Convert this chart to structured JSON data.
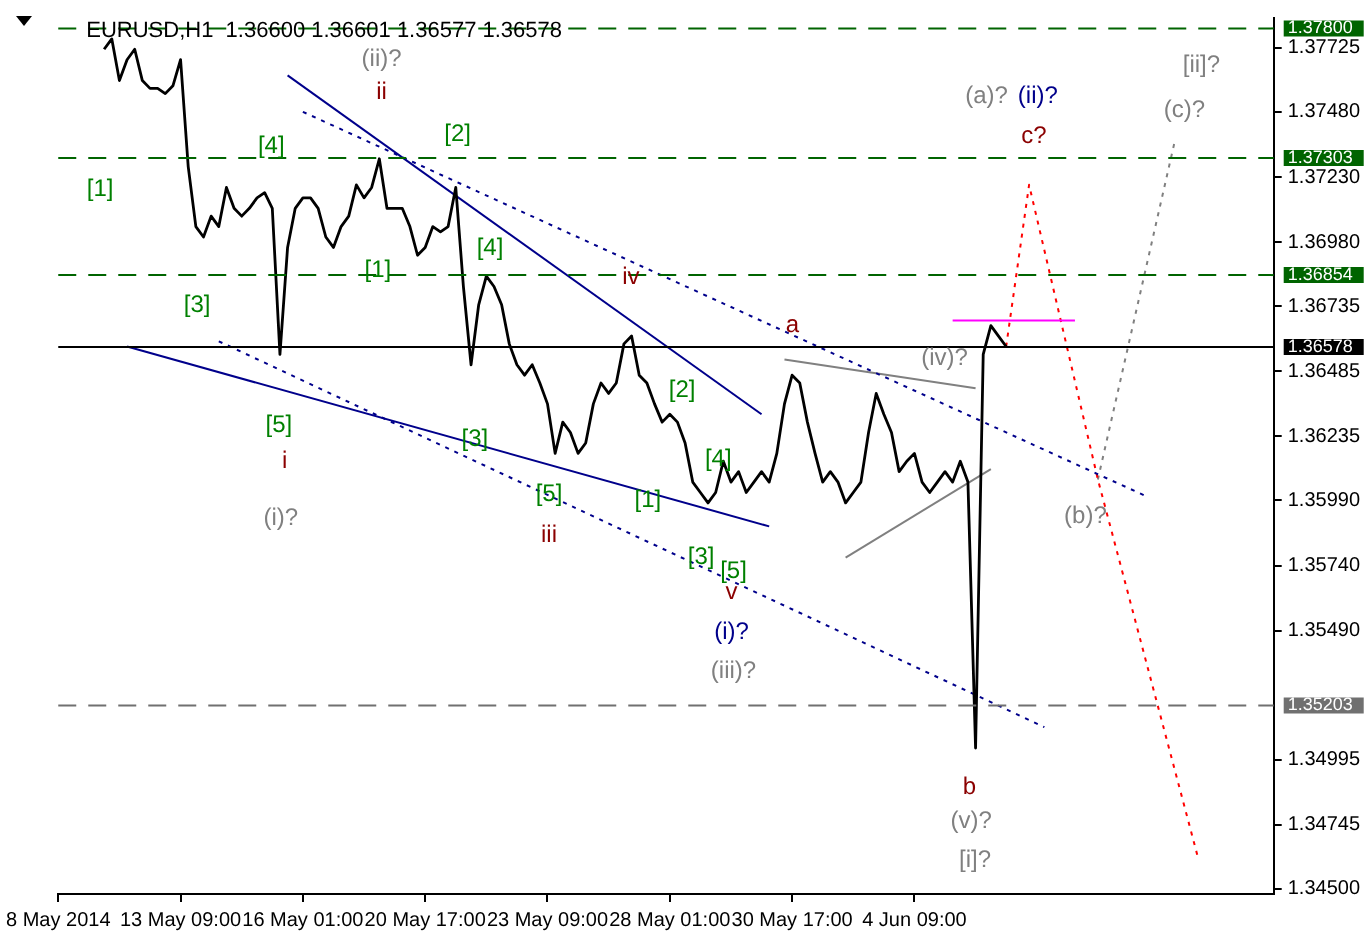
{
  "chart_data": {
    "type": "line",
    "title": "EURUSD,H1  1.36600 1.36601 1.36577 1.36578",
    "categories": [
      "8 May 2014",
      null,
      null,
      null,
      null,
      null,
      null,
      null,
      null,
      null,
      null,
      null,
      null,
      null,
      null,
      null,
      "13 May 09:00",
      null,
      null,
      null,
      null,
      null,
      null,
      null,
      null,
      null,
      null,
      null,
      null,
      null,
      null,
      null,
      "16 May 01:00",
      null,
      null,
      null,
      null,
      null,
      null,
      null,
      null,
      null,
      null,
      null,
      null,
      null,
      null,
      null,
      "20 May 17:00",
      null,
      null,
      null,
      null,
      null,
      null,
      null,
      null,
      null,
      null,
      null,
      null,
      null,
      null,
      null,
      "23 May 09:00",
      null,
      null,
      null,
      null,
      null,
      null,
      null,
      null,
      null,
      null,
      null,
      null,
      null,
      null,
      null,
      "28 May 01:00",
      null,
      null,
      null,
      null,
      null,
      null,
      null,
      null,
      null,
      null,
      null,
      null,
      null,
      null,
      null,
      "30 May 17:00",
      null,
      null,
      null,
      null,
      null,
      null,
      null,
      null,
      null,
      null,
      null,
      null,
      null,
      null,
      null,
      "4 Jun 09:00",
      null,
      null,
      null,
      null,
      null,
      null,
      null,
      null,
      null,
      null,
      null,
      null,
      null,
      null,
      null,
      null,
      null,
      null,
      null,
      null,
      null,
      null,
      null,
      null,
      null,
      null,
      null,
      null,
      null,
      null,
      null,
      null,
      null,
      null,
      null,
      null,
      null,
      null,
      null,
      null,
      null,
      null,
      null,
      null,
      null,
      null,
      null
    ],
    "series": [
      {
        "color": "#000000",
        "values": [
          null,
          null,
          null,
          null,
          null,
          null,
          1.3772,
          1.3776,
          1.376,
          1.3768,
          1.3772,
          1.376,
          1.3757,
          1.3757,
          1.3755,
          1.3758,
          1.3768,
          1.3727,
          1.3704,
          1.37,
          1.3708,
          1.3704,
          1.3719,
          1.3711,
          1.3708,
          1.3711,
          1.3715,
          1.3717,
          1.3711,
          1.3655,
          1.3696,
          1.3711,
          1.3715,
          1.3715,
          1.3711,
          1.37,
          1.3696,
          1.3704,
          1.3708,
          1.372,
          1.3715,
          1.3719,
          1.373,
          1.3711,
          1.3711,
          1.3711,
          1.3704,
          1.3693,
          1.3696,
          1.3704,
          1.3702,
          1.3704,
          1.3719,
          1.3681,
          1.3651,
          1.3674,
          1.3685,
          1.3681,
          1.3674,
          1.3659,
          1.3651,
          1.3647,
          1.3651,
          1.3644,
          1.3636,
          1.3617,
          1.3629,
          1.3625,
          1.3617,
          1.3621,
          1.3636,
          1.3644,
          1.364,
          1.3644,
          1.3659,
          1.3662,
          1.3647,
          1.3644,
          1.3636,
          1.3629,
          1.3632,
          1.3629,
          1.3621,
          1.3606,
          1.3602,
          1.3598,
          1.3602,
          1.3614,
          1.3606,
          1.361,
          1.3602,
          1.3606,
          1.361,
          1.3606,
          1.3617,
          1.3636,
          1.3647,
          1.3644,
          1.3629,
          1.3617,
          1.3606,
          1.361,
          1.3606,
          1.3598,
          1.3602,
          1.3606,
          1.3625,
          1.364,
          1.3632,
          1.3625,
          1.361,
          1.3614,
          1.3617,
          1.3606,
          1.3602,
          1.3606,
          1.361,
          1.3606,
          1.3614,
          1.3606,
          1.3504,
          1.3655,
          1.3666,
          1.3662,
          1.3658,
          null,
          null,
          null,
          null,
          null,
          null,
          null,
          null,
          null,
          null,
          null,
          null,
          null,
          null,
          null,
          null,
          null,
          null,
          null,
          null,
          null,
          null,
          null,
          null,
          null,
          null,
          null,
          null,
          null,
          null,
          null,
          null,
          null,
          null,
          null
        ]
      },
      {
        "color": "#00008b",
        "line_style": "solid",
        "values": [
          null,
          null,
          null,
          null,
          null,
          null,
          null,
          null,
          null,
          null,
          null,
          null,
          null,
          null,
          null,
          null,
          null,
          null,
          null,
          null,
          null,
          null,
          null,
          null,
          null,
          null,
          null,
          null,
          null,
          null,
          1.3762,
          null,
          null,
          null,
          null,
          null,
          null,
          null,
          null,
          null,
          null,
          null,
          null,
          null,
          null,
          null,
          null,
          null,
          null,
          null,
          null,
          null,
          null,
          null,
          null,
          null,
          null,
          null,
          null,
          null,
          null,
          null,
          null,
          null,
          null,
          null,
          null,
          null,
          null,
          null,
          null,
          null,
          null,
          null,
          null,
          null,
          null,
          null,
          null,
          null,
          null,
          null,
          null,
          null,
          null,
          null,
          null,
          null,
          null,
          null,
          null,
          null,
          1.3632,
          null,
          null,
          null,
          null,
          null,
          null,
          null,
          null,
          null,
          null,
          null,
          null,
          null,
          null,
          null,
          null,
          null,
          null,
          null,
          null,
          null,
          null,
          null,
          null,
          null,
          null,
          null,
          null,
          null,
          null,
          null,
          null,
          null,
          null,
          null,
          null,
          null,
          null,
          null,
          null,
          null,
          null,
          null,
          null,
          null,
          null,
          null,
          null,
          null,
          null,
          null,
          null,
          null,
          null,
          null,
          null,
          null,
          null,
          null,
          null,
          null,
          null,
          null,
          null,
          null,
          null,
          null
        ]
      },
      {
        "color": "#00008b",
        "line_style": "solid",
        "values": [
          null,
          null,
          null,
          null,
          null,
          null,
          null,
          null,
          null,
          1.3658,
          null,
          null,
          null,
          null,
          null,
          null,
          null,
          null,
          null,
          null,
          null,
          null,
          null,
          null,
          null,
          null,
          null,
          null,
          null,
          null,
          null,
          null,
          null,
          null,
          null,
          null,
          null,
          null,
          null,
          null,
          null,
          null,
          null,
          null,
          null,
          null,
          null,
          null,
          null,
          null,
          null,
          null,
          null,
          null,
          null,
          null,
          null,
          null,
          null,
          null,
          null,
          null,
          null,
          null,
          null,
          null,
          null,
          null,
          null,
          null,
          null,
          null,
          null,
          null,
          null,
          null,
          null,
          null,
          null,
          null,
          null,
          null,
          null,
          null,
          null,
          null,
          null,
          null,
          null,
          null,
          null,
          null,
          null,
          1.3589,
          null,
          null,
          null,
          null,
          null,
          null,
          null,
          null,
          null,
          null,
          null,
          null,
          null,
          null,
          null,
          null,
          null,
          null,
          null,
          null,
          null,
          null,
          null,
          null,
          null,
          null,
          null,
          null,
          null,
          null,
          null,
          null,
          null,
          null,
          null,
          null,
          null,
          null,
          null,
          null,
          null,
          null,
          null,
          null,
          null,
          null,
          null,
          null,
          null,
          null,
          null,
          null,
          null,
          null,
          null,
          null,
          null,
          null,
          null,
          null,
          null,
          null,
          null,
          null,
          null,
          null
        ]
      },
      {
        "color": "#00008b",
        "line_style": "dotted",
        "values": [
          null,
          null,
          null,
          null,
          null,
          null,
          null,
          null,
          null,
          null,
          null,
          null,
          null,
          null,
          null,
          null,
          null,
          null,
          null,
          null,
          null,
          null,
          null,
          null,
          null,
          null,
          null,
          null,
          null,
          null,
          null,
          null,
          1.3748,
          null,
          null,
          null,
          null,
          null,
          null,
          null,
          null,
          null,
          null,
          null,
          null,
          null,
          null,
          null,
          null,
          null,
          null,
          null,
          null,
          null,
          null,
          null,
          null,
          null,
          null,
          null,
          null,
          null,
          null,
          null,
          null,
          null,
          null,
          null,
          null,
          null,
          null,
          null,
          null,
          null,
          null,
          null,
          null,
          null,
          null,
          null,
          null,
          null,
          null,
          null,
          null,
          null,
          null,
          null,
          null,
          null,
          null,
          null,
          null,
          null,
          null,
          null,
          null,
          null,
          null,
          null,
          null,
          null,
          null,
          null,
          null,
          null,
          null,
          null,
          null,
          null,
          null,
          null,
          null,
          null,
          null,
          null,
          null,
          null,
          null,
          null,
          null,
          null,
          null,
          null,
          null,
          null,
          null,
          null,
          null,
          null,
          null,
          null,
          null,
          null,
          null,
          null,
          null,
          null,
          null,
          null,
          null,
          null,
          1.3601,
          null,
          null,
          null,
          null,
          null,
          null,
          null,
          null,
          null,
          null,
          null,
          null,
          null,
          null,
          null,
          null,
          null
        ]
      },
      {
        "color": "#00008b",
        "line_style": "dotted",
        "values": [
          null,
          null,
          null,
          null,
          null,
          null,
          null,
          null,
          null,
          null,
          null,
          null,
          null,
          null,
          null,
          null,
          null,
          null,
          null,
          null,
          null,
          1.366,
          null,
          null,
          null,
          null,
          null,
          null,
          null,
          null,
          null,
          null,
          null,
          null,
          null,
          null,
          null,
          null,
          null,
          null,
          null,
          null,
          null,
          null,
          null,
          null,
          null,
          null,
          null,
          null,
          null,
          null,
          null,
          null,
          null,
          null,
          null,
          null,
          null,
          null,
          null,
          null,
          null,
          null,
          null,
          null,
          null,
          null,
          null,
          null,
          null,
          null,
          null,
          null,
          null,
          null,
          null,
          null,
          null,
          null,
          null,
          null,
          null,
          null,
          null,
          null,
          null,
          null,
          null,
          null,
          null,
          null,
          null,
          null,
          null,
          null,
          null,
          null,
          null,
          null,
          null,
          null,
          null,
          null,
          null,
          null,
          null,
          null,
          null,
          null,
          null,
          null,
          null,
          null,
          null,
          null,
          null,
          null,
          null,
          null,
          null,
          null,
          null,
          null,
          null,
          null,
          null,
          null,
          null,
          1.3512,
          null,
          null,
          null,
          null,
          null,
          null,
          null,
          null,
          null,
          null,
          null,
          null,
          null,
          null,
          null,
          null,
          null,
          null,
          null,
          null,
          null,
          null,
          null,
          null,
          null,
          null,
          null,
          null,
          null,
          null
        ]
      },
      {
        "color": "#808080",
        "line_style": "solid",
        "values": [
          null,
          null,
          null,
          null,
          null,
          null,
          null,
          null,
          null,
          null,
          null,
          null,
          null,
          null,
          null,
          null,
          null,
          null,
          null,
          null,
          null,
          null,
          null,
          null,
          null,
          null,
          null,
          null,
          null,
          null,
          null,
          null,
          null,
          null,
          null,
          null,
          null,
          null,
          null,
          null,
          null,
          null,
          null,
          null,
          null,
          null,
          null,
          null,
          null,
          null,
          null,
          null,
          null,
          null,
          null,
          null,
          null,
          null,
          null,
          null,
          null,
          null,
          null,
          null,
          null,
          null,
          null,
          null,
          null,
          null,
          null,
          null,
          null,
          null,
          null,
          null,
          null,
          null,
          null,
          null,
          null,
          null,
          null,
          null,
          null,
          null,
          null,
          null,
          null,
          null,
          null,
          null,
          null,
          null,
          null,
          1.3653,
          null,
          null,
          null,
          null,
          null,
          null,
          null,
          null,
          null,
          null,
          null,
          null,
          null,
          null,
          null,
          null,
          null,
          null,
          null,
          null,
          null,
          null,
          null,
          null,
          1.3642,
          null,
          null,
          null,
          null,
          null,
          null,
          null,
          null,
          null,
          null,
          null,
          null,
          null,
          null,
          null,
          null,
          null,
          null,
          null,
          null,
          null,
          null,
          null,
          null,
          null,
          null,
          null,
          null,
          null,
          null,
          null,
          null,
          null,
          null,
          null,
          null,
          null,
          null,
          null
        ]
      },
      {
        "color": "#808080",
        "line_style": "solid",
        "values": [
          null,
          null,
          null,
          null,
          null,
          null,
          null,
          null,
          null,
          null,
          null,
          null,
          null,
          null,
          null,
          null,
          null,
          null,
          null,
          null,
          null,
          null,
          null,
          null,
          null,
          null,
          null,
          null,
          null,
          null,
          null,
          null,
          null,
          null,
          null,
          null,
          null,
          null,
          null,
          null,
          null,
          null,
          null,
          null,
          null,
          null,
          null,
          null,
          null,
          null,
          null,
          null,
          null,
          null,
          null,
          null,
          null,
          null,
          null,
          null,
          null,
          null,
          null,
          null,
          null,
          null,
          null,
          null,
          null,
          null,
          null,
          null,
          null,
          null,
          null,
          null,
          null,
          null,
          null,
          null,
          null,
          null,
          null,
          null,
          null,
          null,
          null,
          null,
          null,
          null,
          null,
          null,
          null,
          null,
          null,
          null,
          null,
          null,
          null,
          null,
          null,
          null,
          null,
          1.3577,
          null,
          null,
          null,
          null,
          null,
          null,
          null,
          null,
          null,
          null,
          null,
          null,
          null,
          null,
          null,
          null,
          null,
          null,
          1.3611,
          null,
          null,
          null,
          null,
          null,
          null,
          null,
          null,
          null,
          null,
          null,
          null,
          null,
          null,
          null,
          null,
          null,
          null,
          null,
          null,
          null,
          null,
          null,
          null,
          null,
          null,
          null,
          null,
          null,
          null,
          null,
          null,
          null,
          null,
          null,
          null,
          null
        ]
      },
      {
        "color": "#ff00ff",
        "line_style": "solid",
        "values": [
          null,
          null,
          null,
          null,
          null,
          null,
          null,
          null,
          null,
          null,
          null,
          null,
          null,
          null,
          null,
          null,
          null,
          null,
          null,
          null,
          null,
          null,
          null,
          null,
          null,
          null,
          null,
          null,
          null,
          null,
          null,
          null,
          null,
          null,
          null,
          null,
          null,
          null,
          null,
          null,
          null,
          null,
          null,
          null,
          null,
          null,
          null,
          null,
          null,
          null,
          null,
          null,
          null,
          null,
          null,
          null,
          null,
          null,
          null,
          null,
          null,
          null,
          null,
          null,
          null,
          null,
          null,
          null,
          null,
          null,
          null,
          null,
          null,
          null,
          null,
          null,
          null,
          null,
          null,
          null,
          null,
          null,
          null,
          null,
          null,
          null,
          null,
          null,
          null,
          null,
          null,
          null,
          null,
          null,
          null,
          null,
          null,
          null,
          null,
          null,
          null,
          null,
          null,
          null,
          null,
          null,
          null,
          null,
          null,
          null,
          null,
          null,
          null,
          null,
          null,
          null,
          null,
          1.3668,
          null,
          null,
          null,
          null,
          null,
          null,
          null,
          null,
          null,
          null,
          null,
          null,
          null,
          null,
          null,
          1.3668,
          null,
          null,
          null,
          null,
          null,
          null,
          null,
          null,
          null,
          null,
          null,
          null,
          null,
          null,
          null,
          null,
          null,
          null,
          null,
          null,
          null,
          null,
          null,
          null,
          null,
          null
        ]
      },
      {
        "color": "#ff0000",
        "line_style": "dotted",
        "values": [
          null,
          null,
          null,
          null,
          null,
          null,
          null,
          null,
          null,
          null,
          null,
          null,
          null,
          null,
          null,
          null,
          null,
          null,
          null,
          null,
          null,
          null,
          null,
          null,
          null,
          null,
          null,
          null,
          null,
          null,
          null,
          null,
          null,
          null,
          null,
          null,
          null,
          null,
          null,
          null,
          null,
          null,
          null,
          null,
          null,
          null,
          null,
          null,
          null,
          null,
          null,
          null,
          null,
          null,
          null,
          null,
          null,
          null,
          null,
          null,
          null,
          null,
          null,
          null,
          null,
          null,
          null,
          null,
          null,
          null,
          null,
          null,
          null,
          null,
          null,
          null,
          null,
          null,
          null,
          null,
          null,
          null,
          null,
          null,
          null,
          null,
          null,
          null,
          null,
          null,
          null,
          null,
          null,
          null,
          null,
          null,
          null,
          null,
          null,
          null,
          null,
          null,
          null,
          null,
          null,
          null,
          null,
          null,
          null,
          null,
          null,
          null,
          null,
          null,
          null,
          null,
          null,
          null,
          null,
          null,
          null,
          null,
          null,
          null,
          1.3658,
          null,
          null,
          1.372,
          null,
          null,
          null,
          null,
          null,
          null,
          null,
          null,
          1.3607,
          null,
          null,
          null,
          null,
          null,
          null,
          null,
          null,
          null,
          null,
          null,
          null,
          1.3463,
          null,
          null,
          null,
          null,
          null,
          null,
          null,
          null,
          null,
          null
        ]
      },
      {
        "color": "#808080",
        "line_style": "dotted",
        "values": [
          null,
          null,
          null,
          null,
          null,
          null,
          null,
          null,
          null,
          null,
          null,
          null,
          null,
          null,
          null,
          null,
          null,
          null,
          null,
          null,
          null,
          null,
          null,
          null,
          null,
          null,
          null,
          null,
          null,
          null,
          null,
          null,
          null,
          null,
          null,
          null,
          null,
          null,
          null,
          null,
          null,
          null,
          null,
          null,
          null,
          null,
          null,
          null,
          null,
          null,
          null,
          null,
          null,
          null,
          null,
          null,
          null,
          null,
          null,
          null,
          null,
          null,
          null,
          null,
          null,
          null,
          null,
          null,
          null,
          null,
          null,
          null,
          null,
          null,
          null,
          null,
          null,
          null,
          null,
          null,
          null,
          null,
          null,
          null,
          null,
          null,
          null,
          null,
          null,
          null,
          null,
          null,
          null,
          null,
          null,
          null,
          null,
          null,
          null,
          null,
          null,
          null,
          null,
          null,
          null,
          null,
          null,
          null,
          null,
          null,
          null,
          null,
          null,
          null,
          null,
          null,
          null,
          null,
          null,
          null,
          null,
          null,
          null,
          null,
          null,
          null,
          null,
          null,
          null,
          null,
          null,
          null,
          null,
          null,
          null,
          null,
          1.3607,
          null,
          null,
          null,
          null,
          null,
          null,
          null,
          null,
          null,
          1.3736,
          null,
          null,
          null,
          null,
          null,
          null,
          null,
          null,
          null,
          null,
          null,
          null,
          null
        ]
      }
    ],
    "ylim": [
      1.3448,
      1.3784
    ],
    "yticks": [
      {
        "value": 1.345,
        "label": "1.34500"
      },
      {
        "value": 1.34745,
        "label": "1.34745"
      },
      {
        "value": 1.34995,
        "label": "1.34995"
      },
      {
        "value": 1.3549,
        "label": "1.35490"
      },
      {
        "value": 1.3574,
        "label": "1.35740"
      },
      {
        "value": 1.3599,
        "label": "1.35990"
      },
      {
        "value": 1.36235,
        "label": "1.36235"
      },
      {
        "value": 1.36485,
        "label": "1.36485"
      },
      {
        "value": 1.36735,
        "label": "1.36735"
      },
      {
        "value": 1.3698,
        "label": "1.36980"
      },
      {
        "value": 1.3723,
        "label": "1.37230"
      },
      {
        "value": 1.3748,
        "label": "1.37480"
      },
      {
        "value": 1.37725,
        "label": "1.37725"
      }
    ],
    "ref_lines": [
      {
        "axis": "y",
        "value": 1.378,
        "label": "1.37800",
        "color": "#006400",
        "line_style": "dashed"
      },
      {
        "axis": "y",
        "value": 1.37303,
        "label": "1.37303",
        "color": "#006400",
        "line_style": "dashed"
      },
      {
        "axis": "y",
        "value": 1.36854,
        "label": "1.36854",
        "color": "#006400",
        "line_style": "dashed"
      },
      {
        "axis": "y",
        "value": 1.36578,
        "label": "1.36578",
        "color": "#000000",
        "line_style": "solid"
      },
      {
        "axis": "y",
        "value": 1.35203,
        "label": "1.35203",
        "color": "#707070",
        "line_style": "dashed"
      }
    ],
    "annotations": [
      "(ii)?",
      "ii",
      "[2]",
      "[4]",
      "[1]",
      "[1]",
      "[4]",
      "[3]",
      "[5]",
      "i",
      "(i)?",
      "[3]",
      "[5]",
      "iii",
      "iv",
      "[2]",
      "[4]",
      "[1]",
      "[3]",
      "[5]",
      "v",
      "(i)?",
      "(iii)?",
      "a",
      "(iv)?",
      "b",
      "(v)?",
      "[i]?",
      "(a)?",
      "(ii)?",
      "c?",
      "[ii]?",
      "(c)?",
      "(b)?"
    ]
  }
}
